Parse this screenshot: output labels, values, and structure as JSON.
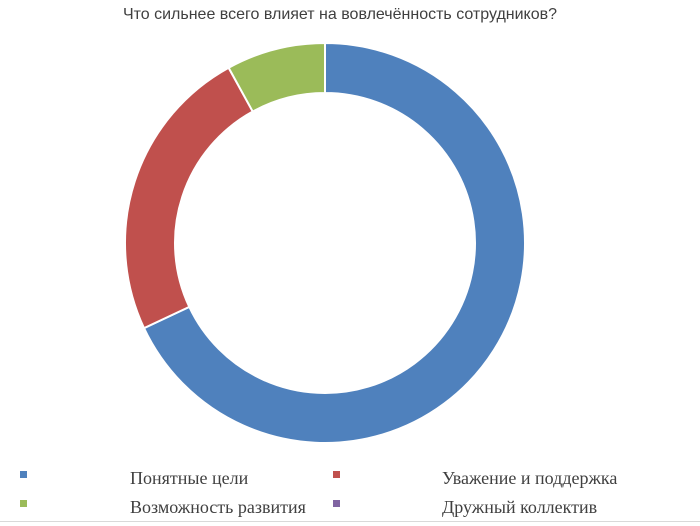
{
  "chart_data": {
    "type": "pie",
    "variant": "donut",
    "title": "Что сильнее всего влияет на вовлечённость сотрудников?",
    "categories": [
      "Понятные цели",
      "Уважение и поддержка",
      "Возможность развития",
      "Дружный коллектив"
    ],
    "values": [
      68,
      24,
      8,
      0
    ],
    "colors": [
      "#4f81bd",
      "#c0504d",
      "#9bbb59",
      "#8064a2"
    ],
    "legend_position": "bottom"
  }
}
